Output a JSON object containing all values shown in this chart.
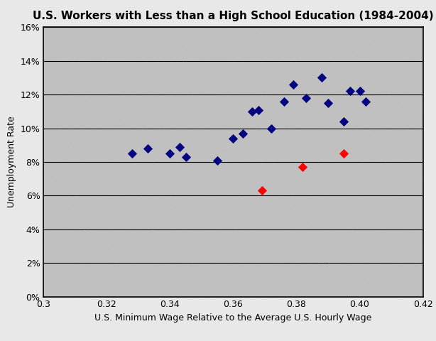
{
  "title": "U.S. Workers with Less than a High School Education (1984-2004)",
  "xlabel": "U.S. Minimum Wage Relative to the Average U.S. Hourly Wage",
  "ylabel": "Unemployment Rate",
  "xlim": [
    0.3,
    0.42
  ],
  "ylim": [
    0.0,
    0.16
  ],
  "xticks": [
    0.3,
    0.32,
    0.34,
    0.36,
    0.38,
    0.4,
    0.42
  ],
  "yticks": [
    0.0,
    0.02,
    0.04,
    0.06,
    0.08,
    0.1,
    0.12,
    0.14,
    0.16
  ],
  "ytick_labels": [
    "0%",
    "2%",
    "4%",
    "6%",
    "8%",
    "10%",
    "12%",
    "14%",
    "16%"
  ],
  "xtick_labels": [
    "0.3",
    "0.32",
    "0.34",
    "0.36",
    "0.38",
    "0.40",
    "0.42"
  ],
  "blue_x": [
    0.328,
    0.333,
    0.34,
    0.343,
    0.345,
    0.355,
    0.36,
    0.363,
    0.366,
    0.368,
    0.372,
    0.376,
    0.379,
    0.383,
    0.388,
    0.39,
    0.395,
    0.397,
    0.4,
    0.402
  ],
  "blue_y": [
    0.085,
    0.088,
    0.085,
    0.089,
    0.083,
    0.081,
    0.094,
    0.097,
    0.11,
    0.111,
    0.1,
    0.116,
    0.126,
    0.118,
    0.13,
    0.115,
    0.104,
    0.122,
    0.122,
    0.116
  ],
  "red_x": [
    0.369,
    0.382,
    0.395
  ],
  "red_y": [
    0.063,
    0.077,
    0.085
  ],
  "background_color": "#c0c0c0",
  "fig_background": "#e8e8e8",
  "blue_color": "#000080",
  "red_color": "#FF0000",
  "marker_size": 45,
  "grid_color": "#000000",
  "title_fontsize": 11,
  "label_fontsize": 9,
  "tick_fontsize": 9
}
